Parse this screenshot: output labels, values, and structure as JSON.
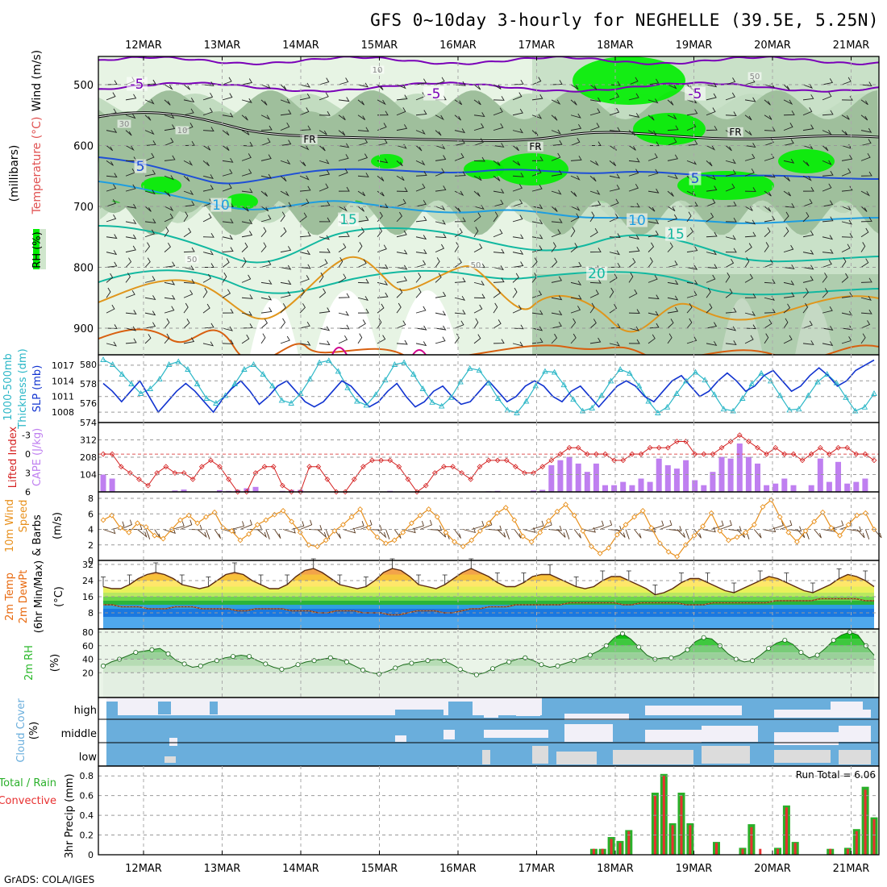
{
  "title": "GFS 0~10day 3-hourly for NEGHELLE (39.5E, 5.25N)",
  "credit": "GrADS: COLA/IGES",
  "dates": [
    "12MAR",
    "13MAR",
    "14MAR",
    "15MAR",
    "16MAR",
    "17MAR",
    "18MAR",
    "19MAR",
    "20MAR",
    "21MAR"
  ],
  "colors": {
    "rh_light": "#e7f4e4",
    "rh_mid": "#c2dcc0",
    "rh_dark": "#9fbf9c",
    "rh_green": "#3ec43e",
    "rh_bright": "#00ee00",
    "purple": "#7a00b8",
    "black": "#000000",
    "blue": "#1f4fd6",
    "cyan": "#1e9ee0",
    "teal": "#12b8a0",
    "orange": "#e0961c",
    "dorange": "#d86010",
    "magenta": "#d0008c",
    "slp": "#1234d0",
    "thick": "#2cb7c7",
    "li": "#d42020",
    "cape": "#bf7ff0",
    "wind": "#e8901c",
    "temp": "#e86a10",
    "dew": "#1a78e0",
    "rhline": "#2ab82a",
    "cloud": "#6aaedc",
    "cloud_light": "#f2f0f8",
    "cloud_gray": "#dcdcdc",
    "rain": "#2ab02a",
    "conv": "#e83030"
  },
  "panels": {
    "upper": {
      "axis_label_wind": "Wind (m/s)",
      "axis_label_temp": "Temperature (°C)",
      "axis_label_mb": "(millibars)",
      "axis_label_rh": "RH (%)",
      "yticks": [
        "500",
        "600",
        "700",
        "800",
        "900"
      ],
      "contour_labels": [
        "-5",
        "-5",
        "-5",
        "FR",
        "FR",
        "FR",
        "5",
        "5",
        "10",
        "10",
        "15",
        "15",
        "20",
        "10",
        "10",
        "30",
        "50",
        "50",
        "50"
      ]
    },
    "slp_thick": {
      "label_a": "1000-500mb",
      "label_b": "Thickness (dm)",
      "label_c": "SLP (mb)",
      "thick_ticks": [
        "580",
        "578",
        "576",
        "574"
      ],
      "slp_ticks": [
        "1017",
        "1014",
        "1011",
        "1008"
      ]
    },
    "li_cape": {
      "label_li": "Lifted Index",
      "label_cape": "CAPE (J/kg)",
      "li_ticks": [
        "-3",
        "0",
        "3",
        "6"
      ],
      "cape_ticks": [
        "312",
        "208",
        "104"
      ]
    },
    "wind10": {
      "label_a": "10m Wind",
      "label_b": "Speed",
      "label_c": "& Barbs",
      "label_d": "(m/s)",
      "ticks": [
        "8",
        "6",
        "4",
        "2",
        "0"
      ]
    },
    "temp2m": {
      "label_a": "2m Temp",
      "label_b": "2m DewPt",
      "label_c": "(6hr Min/Max)",
      "label_d": "(°C)",
      "ticks": [
        "32",
        "24",
        "16",
        "8"
      ]
    },
    "rh2m": {
      "label_a": "2m RH",
      "label_b": "(%)",
      "ticks": [
        "80",
        "60",
        "40",
        "20"
      ]
    },
    "cloud": {
      "label_a": "Cloud Cover",
      "label_b": "(%)",
      "levels": [
        "high",
        "middle",
        "low"
      ]
    },
    "precip": {
      "label_a": "Total / Rain",
      "label_b": "Convective",
      "label_c": "3hr Precip (mm)",
      "run_total": "Run Total = 6.06",
      "ticks": [
        "0.8",
        "0.6",
        "0.4",
        "0.2",
        "0"
      ]
    }
  },
  "chart_data": [
    {
      "type": "line",
      "name": "slp_thickness",
      "series": [
        {
          "name": "SLP (mb)",
          "values": [
            1013.5,
            1012,
            1010,
            1012,
            1014,
            1011,
            1008,
            1010,
            1012,
            1013.5,
            1012,
            1010,
            1008,
            1010.5,
            1012.5,
            1014,
            1012,
            1009.5,
            1011,
            1013,
            1014,
            1012,
            1010,
            1009,
            1010,
            1012,
            1014,
            1013,
            1011,
            1009,
            1010,
            1012,
            1013.5,
            1011,
            1009,
            1010,
            1012,
            1013,
            1011,
            1009.5,
            1010,
            1012,
            1014,
            1012,
            1010,
            1011,
            1013,
            1014,
            1013,
            1011,
            1010,
            1012,
            1013,
            1011,
            1009,
            1011,
            1013,
            1014,
            1013,
            1011,
            1010,
            1012,
            1014,
            1015,
            1013,
            1011,
            1012,
            1014,
            1015.5,
            1014,
            1012,
            1013,
            1015,
            1016,
            1014,
            1012,
            1013,
            1015,
            1016.5,
            1015,
            1013,
            1014,
            1016,
            1017,
            1018
          ]
        },
        {
          "name": "1000-500mb Thickness (dm)",
          "values": [
            580.5,
            580,
            579,
            578,
            577,
            577.5,
            578.5,
            580,
            580.3,
            579.5,
            578,
            576.5,
            576,
            576.8,
            578,
            579.5,
            580,
            579,
            577.8,
            576.3,
            576,
            577,
            578.5,
            580.2,
            580.4,
            579.3,
            577.6,
            576.2,
            575.8,
            576.9,
            578.4,
            580,
            580.2,
            579,
            577.5,
            576.1,
            575.7,
            576.6,
            578.2,
            579.6,
            579.4,
            578.1,
            576.5,
            575.3,
            575,
            576.2,
            577.8,
            579.3,
            579.2,
            577.9,
            576.4,
            575.2,
            575.5,
            576.8,
            578.3,
            579.5,
            579.1,
            577.8,
            576.2,
            575,
            575.6,
            577,
            578.3,
            579.2,
            578.4,
            576.9,
            575.4,
            575.2,
            576.5,
            578,
            579.1,
            578.3,
            576.8,
            575.3,
            575.4,
            576.8,
            578.2,
            579,
            578.1,
            576.6,
            575.2,
            575.6,
            577
          ]
        }
      ],
      "ylim_slp": [
        1006,
        1019
      ],
      "ylim_thickness": [
        574,
        581
      ]
    },
    {
      "type": "bar",
      "name": "cape_lifted_index",
      "series": [
        {
          "name": "CAPE (J/kg)",
          "values": [
            104,
            80,
            0,
            0,
            0,
            0,
            0,
            0,
            8,
            14,
            0,
            0,
            0,
            10,
            6,
            12,
            22,
            30,
            0,
            0,
            6,
            12,
            12,
            0,
            0,
            0,
            0,
            0,
            0,
            0,
            0,
            0,
            6,
            0,
            0,
            0,
            0,
            0,
            0,
            0,
            0,
            0,
            0,
            4,
            6,
            0,
            0,
            0,
            8,
            12,
            160,
            190,
            210,
            170,
            120,
            170,
            40,
            40,
            60,
            40,
            80,
            60,
            200,
            160,
            140,
            190,
            70,
            40,
            120,
            210,
            200,
            290,
            210,
            170,
            40,
            50,
            80,
            40,
            0,
            40,
            200,
            60,
            180,
            50,
            60,
            80,
            0
          ]
        },
        {
          "name": "Lifted Index",
          "values": [
            0,
            0,
            2,
            3,
            4,
            5,
            3,
            2,
            3,
            3,
            4,
            2,
            1,
            2,
            4,
            6,
            6,
            3,
            2,
            2,
            5,
            6,
            6,
            2,
            2,
            4,
            6,
            6,
            4,
            2,
            1,
            1,
            1,
            2,
            4,
            6,
            5,
            3,
            2,
            2,
            3,
            4,
            2,
            1,
            1,
            1,
            2,
            3,
            3,
            2,
            1,
            0,
            -1,
            -1,
            0,
            0,
            0,
            1,
            1,
            0,
            0,
            -1,
            -1,
            -1,
            -2,
            -2,
            0,
            0,
            0,
            -1,
            -2,
            -3,
            -2,
            -1,
            0,
            -1,
            0,
            0,
            1,
            0,
            -1,
            0,
            -1,
            -1,
            0,
            0,
            1
          ]
        }
      ],
      "ylim_cape": [
        0,
        416
      ],
      "ylim_li": [
        -5,
        6
      ]
    },
    {
      "type": "line",
      "name": "wind10m",
      "series": [
        {
          "name": "10m Wind Speed (m/s)",
          "values": [
            5.2,
            5.8,
            4.2,
            3.6,
            4.8,
            4.3,
            3.2,
            2.8,
            4.0,
            5.2,
            5.8,
            4.8,
            5.6,
            6.2,
            4.2,
            3.8,
            2.6,
            3.4,
            4.6,
            5.2,
            5.9,
            6.4,
            5.0,
            3.6,
            2.0,
            1.8,
            2.6,
            3.8,
            4.6,
            5.6,
            6.6,
            4.2,
            3.0,
            2.2,
            2.6,
            3.6,
            4.8,
            5.8,
            6.6,
            5.6,
            3.6,
            2.4,
            1.8,
            2.6,
            3.8,
            4.8,
            6.1,
            6.8,
            5.2,
            3.1,
            2.4,
            3.6,
            5.1,
            6.3,
            7.2,
            5.8,
            3.8,
            1.8,
            0.9,
            1.6,
            3.3,
            4.6,
            5.6,
            6.4,
            4.2,
            2.2,
            1.1,
            0.5,
            2.0,
            3.2,
            4.4,
            6.1,
            3.8,
            2.6,
            3.0,
            3.6,
            4.6,
            6.9,
            7.8,
            5.6,
            3.6,
            2.4,
            3.8,
            5.0,
            6.2,
            4.2,
            3.2,
            4.6,
            5.8,
            6.1,
            4.0
          ]
        }
      ],
      "ylim": [
        0,
        8
      ]
    },
    {
      "type": "area",
      "name": "temp2m",
      "series": [
        {
          "name": "2m Temp (°C)",
          "values": [
            21,
            20,
            20,
            22,
            25,
            27,
            28,
            27,
            25,
            22,
            21,
            20,
            21,
            24,
            27,
            28,
            27,
            24,
            22,
            20,
            20,
            22,
            26,
            29,
            30,
            28,
            25,
            22,
            21,
            20,
            21,
            24,
            28,
            30,
            29,
            26,
            22,
            21,
            20,
            22,
            25,
            28,
            30,
            28,
            26,
            23,
            21,
            21,
            23,
            26,
            27,
            27,
            25,
            23,
            21,
            20,
            21,
            24,
            26,
            26,
            24,
            22,
            20,
            17,
            18,
            20,
            23,
            25,
            25,
            23,
            21,
            19,
            18,
            20,
            22,
            24,
            26,
            25,
            23,
            21,
            19,
            18,
            20,
            22,
            25,
            27,
            26,
            24,
            21
          ]
        },
        {
          "name": "2m DewPt (°C)",
          "values": [
            12,
            12,
            11,
            11,
            11,
            10,
            10,
            10,
            11,
            11,
            11,
            10,
            10,
            10,
            10,
            9,
            9,
            10,
            10,
            10,
            10,
            9,
            9,
            9,
            8,
            8,
            9,
            9,
            9,
            8,
            8,
            8,
            7,
            7,
            8,
            9,
            9,
            9,
            8,
            8,
            9,
            10,
            10,
            11,
            11,
            11,
            12,
            12,
            12,
            12,
            12,
            12,
            13,
            13,
            13,
            13,
            13,
            13,
            12,
            12,
            13,
            13,
            13,
            13,
            13,
            12,
            12,
            12,
            13,
            13,
            13,
            13,
            13,
            13,
            13,
            14,
            14,
            14,
            14,
            14,
            15,
            15,
            15,
            15,
            15,
            14,
            14
          ]
        }
      ],
      "ylim": [
        0,
        34
      ]
    },
    {
      "type": "area",
      "name": "rh2m",
      "series": [
        {
          "name": "2m RH (%)",
          "values": [
            30,
            36,
            40,
            45,
            50,
            52,
            54,
            56,
            48,
            38,
            33,
            28,
            30,
            35,
            38,
            42,
            44,
            46,
            44,
            38,
            33,
            28,
            25,
            27,
            32,
            36,
            38,
            40,
            42,
            40,
            36,
            30,
            24,
            20,
            18,
            22,
            27,
            32,
            34,
            36,
            38,
            40,
            38,
            32,
            25,
            20,
            17,
            20,
            26,
            32,
            36,
            40,
            42,
            38,
            32,
            28,
            30,
            34,
            38,
            42,
            46,
            52,
            60,
            72,
            78,
            70,
            58,
            46,
            40,
            42,
            42,
            46,
            54,
            66,
            72,
            70,
            60,
            48,
            40,
            36,
            38,
            46,
            56,
            64,
            68,
            62,
            50,
            42,
            46,
            56,
            68,
            76,
            80,
            76,
            60,
            46
          ]
        }
      ],
      "ylim": [
        0,
        80
      ]
    },
    {
      "type": "bar",
      "name": "precip3hr",
      "series": [
        {
          "name": "Total / Rain (mm)",
          "values": [
            0,
            0,
            0,
            0,
            0,
            0,
            0,
            0,
            0,
            0,
            0,
            0,
            0,
            0,
            0,
            0,
            0,
            0,
            0,
            0,
            0,
            0,
            0,
            0,
            0,
            0,
            0,
            0,
            0,
            0,
            0,
            0,
            0,
            0,
            0,
            0,
            0,
            0,
            0,
            0,
            0,
            0,
            0,
            0,
            0,
            0,
            0,
            0,
            0,
            0,
            0,
            0,
            0,
            0,
            0,
            0,
            0.06,
            0.06,
            0.18,
            0.14,
            0.25,
            0,
            0,
            0.63,
            0.82,
            0.32,
            0.63,
            0.32,
            0,
            0,
            0.13,
            0,
            0,
            0.07,
            0.31,
            0,
            0,
            0.07,
            0.5,
            0.13,
            0,
            0,
            0,
            0.06,
            0,
            0.07,
            0.26,
            0.69,
            0.38
          ]
        },
        {
          "name": "Convective (mm)",
          "values": [
            0,
            0,
            0,
            0,
            0,
            0,
            0,
            0,
            0,
            0,
            0,
            0,
            0,
            0,
            0,
            0,
            0,
            0,
            0,
            0,
            0,
            0,
            0,
            0,
            0,
            0,
            0,
            0,
            0,
            0,
            0,
            0,
            0,
            0,
            0,
            0,
            0,
            0,
            0,
            0,
            0,
            0,
            0,
            0,
            0,
            0,
            0,
            0,
            0,
            0,
            0,
            0,
            0,
            0,
            0,
            0,
            0.06,
            0.06,
            0.16,
            0.12,
            0.24,
            0,
            0,
            0.6,
            0.8,
            0.3,
            0.6,
            0.3,
            0,
            0,
            0.12,
            0,
            0,
            0.06,
            0.28,
            0.06,
            0,
            0.06,
            0.48,
            0.12,
            0,
            0,
            0,
            0.06,
            0,
            0.06,
            0.24,
            0.66,
            0.36
          ]
        }
      ],
      "ylim": [
        0,
        0.9
      ]
    }
  ]
}
